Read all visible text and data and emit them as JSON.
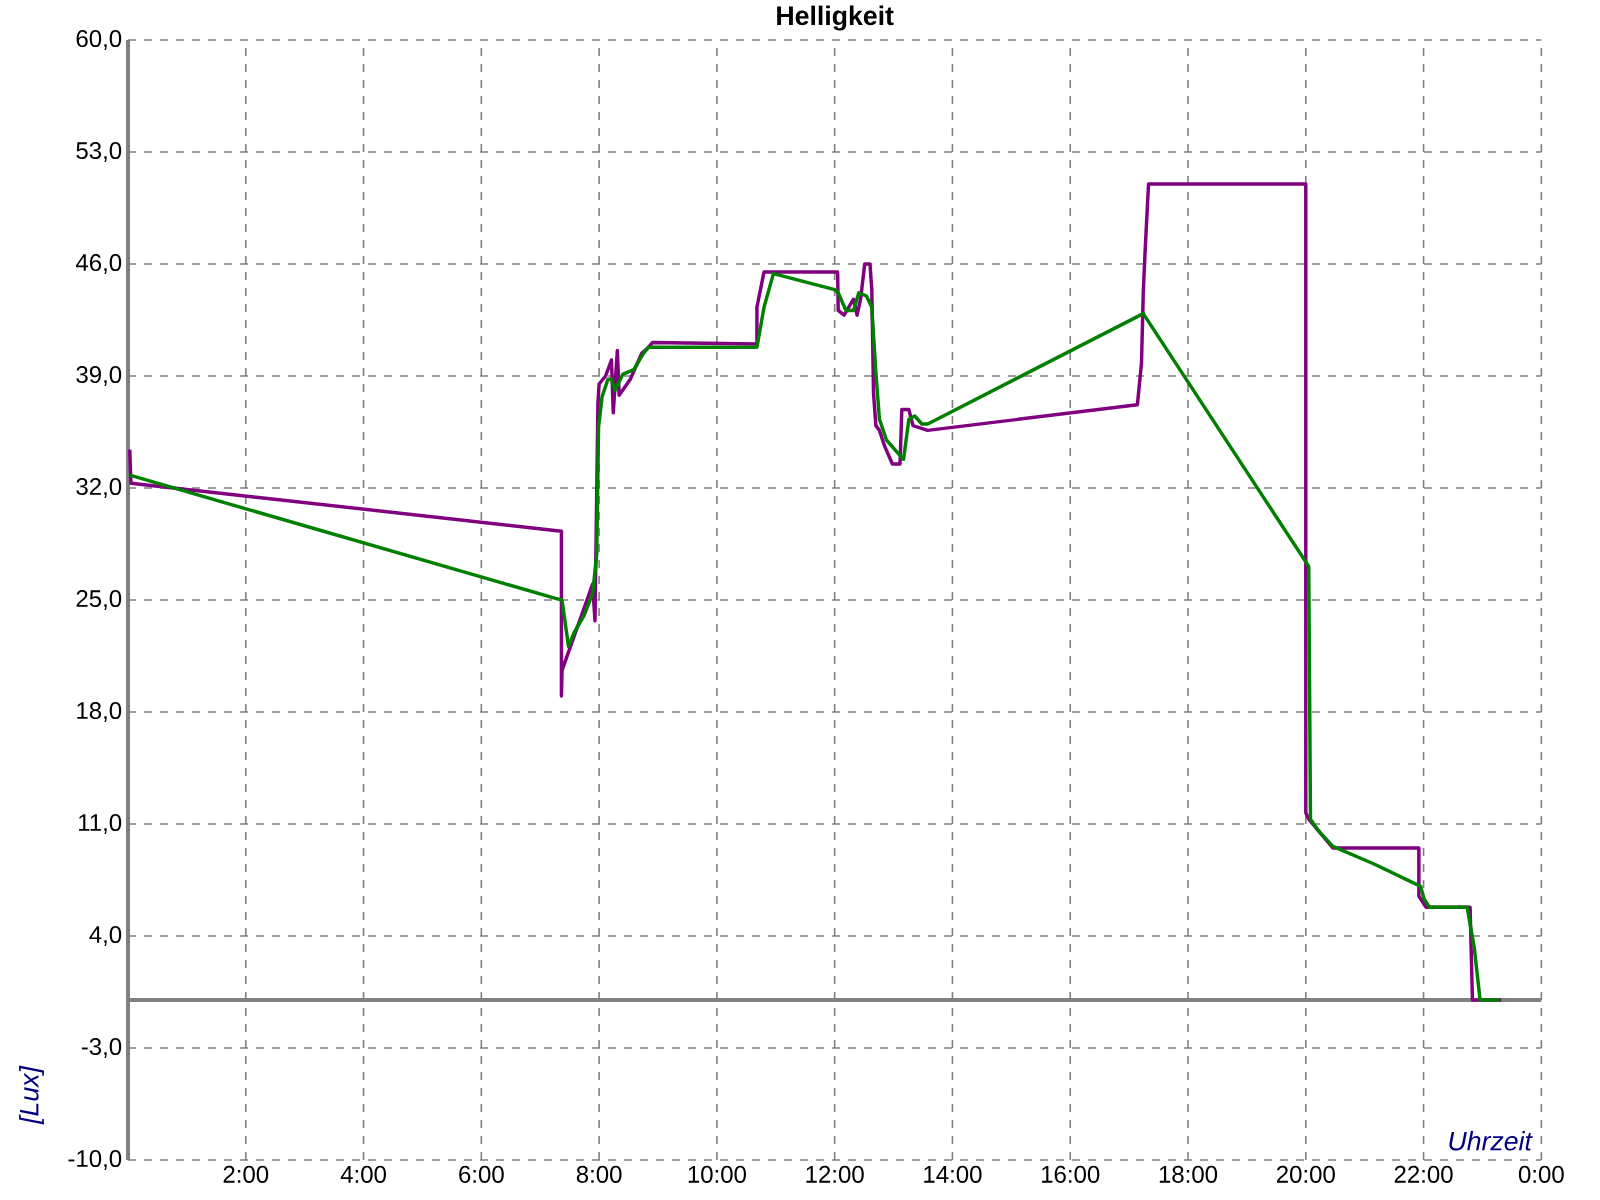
{
  "chart_data": {
    "type": "line",
    "title": "Helligkeit",
    "xlabel": "Uhrzeit",
    "ylabel": "[Lux]",
    "xlim": [
      0,
      24
    ],
    "ylim": [
      -10,
      60
    ],
    "xticks": [
      {
        "value": 2,
        "label": "2:00"
      },
      {
        "value": 4,
        "label": "4:00"
      },
      {
        "value": 6,
        "label": "6:00"
      },
      {
        "value": 8,
        "label": "8:00"
      },
      {
        "value": 10,
        "label": "10:00"
      },
      {
        "value": 12,
        "label": "12:00"
      },
      {
        "value": 14,
        "label": "14:00"
      },
      {
        "value": 16,
        "label": "16:00"
      },
      {
        "value": 18,
        "label": "18:00"
      },
      {
        "value": 20,
        "label": "20:00"
      },
      {
        "value": 22,
        "label": "22:00"
      },
      {
        "value": 24,
        "label": "0:00"
      }
    ],
    "yticks": [
      {
        "value": -10,
        "label": "-10,0"
      },
      {
        "value": -3,
        "label": "-3,0"
      },
      {
        "value": 4,
        "label": "4,0"
      },
      {
        "value": 11,
        "label": "11,0"
      },
      {
        "value": 18,
        "label": "18,0"
      },
      {
        "value": 25,
        "label": "25,0"
      },
      {
        "value": 32,
        "label": "32,0"
      },
      {
        "value": 39,
        "label": "39,0"
      },
      {
        "value": 46,
        "label": "46,0"
      },
      {
        "value": 53,
        "label": "53,0"
      },
      {
        "value": 60,
        "label": "60,0"
      }
    ],
    "grid": true,
    "ref_lines": [
      {
        "axis": "y",
        "value": 0,
        "color": "#808080"
      }
    ],
    "series": [
      {
        "color": "#800080",
        "x": [
          0.03,
          0.05,
          7.36,
          7.36,
          7.37,
          7.89,
          7.93,
          7.98,
          8.0,
          8.11,
          8.21,
          8.24,
          8.31,
          8.34,
          8.53,
          8.72,
          8.84,
          8.91,
          10.68,
          10.68,
          10.8,
          12.05,
          12.06,
          12.16,
          12.32,
          12.38,
          12.44,
          12.51,
          12.6,
          12.63,
          12.66,
          12.7,
          12.76,
          12.85,
          12.98,
          13.11,
          13.14,
          13.26,
          13.33,
          13.58,
          17.14,
          17.21,
          17.24,
          17.27,
          17.31,
          17.33,
          20.0,
          20.0,
          20.05,
          20.21,
          20.46,
          21.92,
          21.92,
          22.04,
          22.79,
          22.83,
          23.32
        ],
        "values": [
          34.4,
          32.3,
          29.3,
          19.0,
          20.6,
          26.0,
          23.7,
          37.3,
          38.5,
          39.0,
          40.0,
          36.7,
          40.6,
          37.8,
          38.8,
          40.4,
          40.8,
          41.1,
          41.0,
          43.3,
          45.5,
          45.5,
          43.1,
          42.8,
          43.8,
          42.8,
          43.8,
          46.0,
          46.0,
          44.4,
          37.9,
          35.9,
          35.6,
          34.6,
          33.5,
          33.5,
          36.9,
          36.9,
          35.9,
          35.6,
          37.2,
          39.8,
          44.2,
          46.7,
          49.6,
          51.0,
          51.0,
          11.7,
          11.3,
          10.6,
          9.5,
          9.5,
          6.5,
          5.8,
          5.8,
          0,
          0
        ]
      },
      {
        "color": "#008000",
        "x": [
          0.03,
          7.26,
          7.37,
          7.48,
          7.58,
          7.74,
          7.89,
          7.96,
          7.99,
          8.05,
          8.15,
          8.21,
          8.27,
          8.4,
          8.59,
          8.75,
          8.84,
          10.68,
          10.8,
          10.96,
          12.0,
          12.06,
          12.19,
          12.32,
          12.41,
          12.54,
          12.63,
          12.7,
          12.76,
          12.88,
          13.07,
          13.17,
          13.26,
          13.36,
          13.48,
          13.58,
          17.24,
          20.05,
          20.08,
          20.21,
          20.46,
          21.16,
          21.95,
          22.01,
          22.1,
          22.74,
          22.86,
          22.96,
          23.3
        ],
        "values": [
          32.8,
          25.1,
          25.0,
          22.1,
          23.0,
          24.0,
          25.4,
          27.9,
          35.8,
          37.7,
          38.8,
          38.8,
          38.1,
          39.1,
          39.4,
          40.4,
          40.8,
          40.8,
          43.3,
          45.4,
          44.4,
          44.2,
          43.1,
          43.1,
          44.2,
          44.0,
          43.3,
          39.2,
          36.3,
          35.0,
          34.2,
          33.8,
          36.3,
          36.5,
          36.0,
          36.0,
          42.9,
          27.1,
          11.3,
          10.6,
          9.6,
          8.5,
          7.1,
          6.3,
          5.8,
          5.8,
          3.3,
          0,
          0
        ]
      }
    ]
  }
}
